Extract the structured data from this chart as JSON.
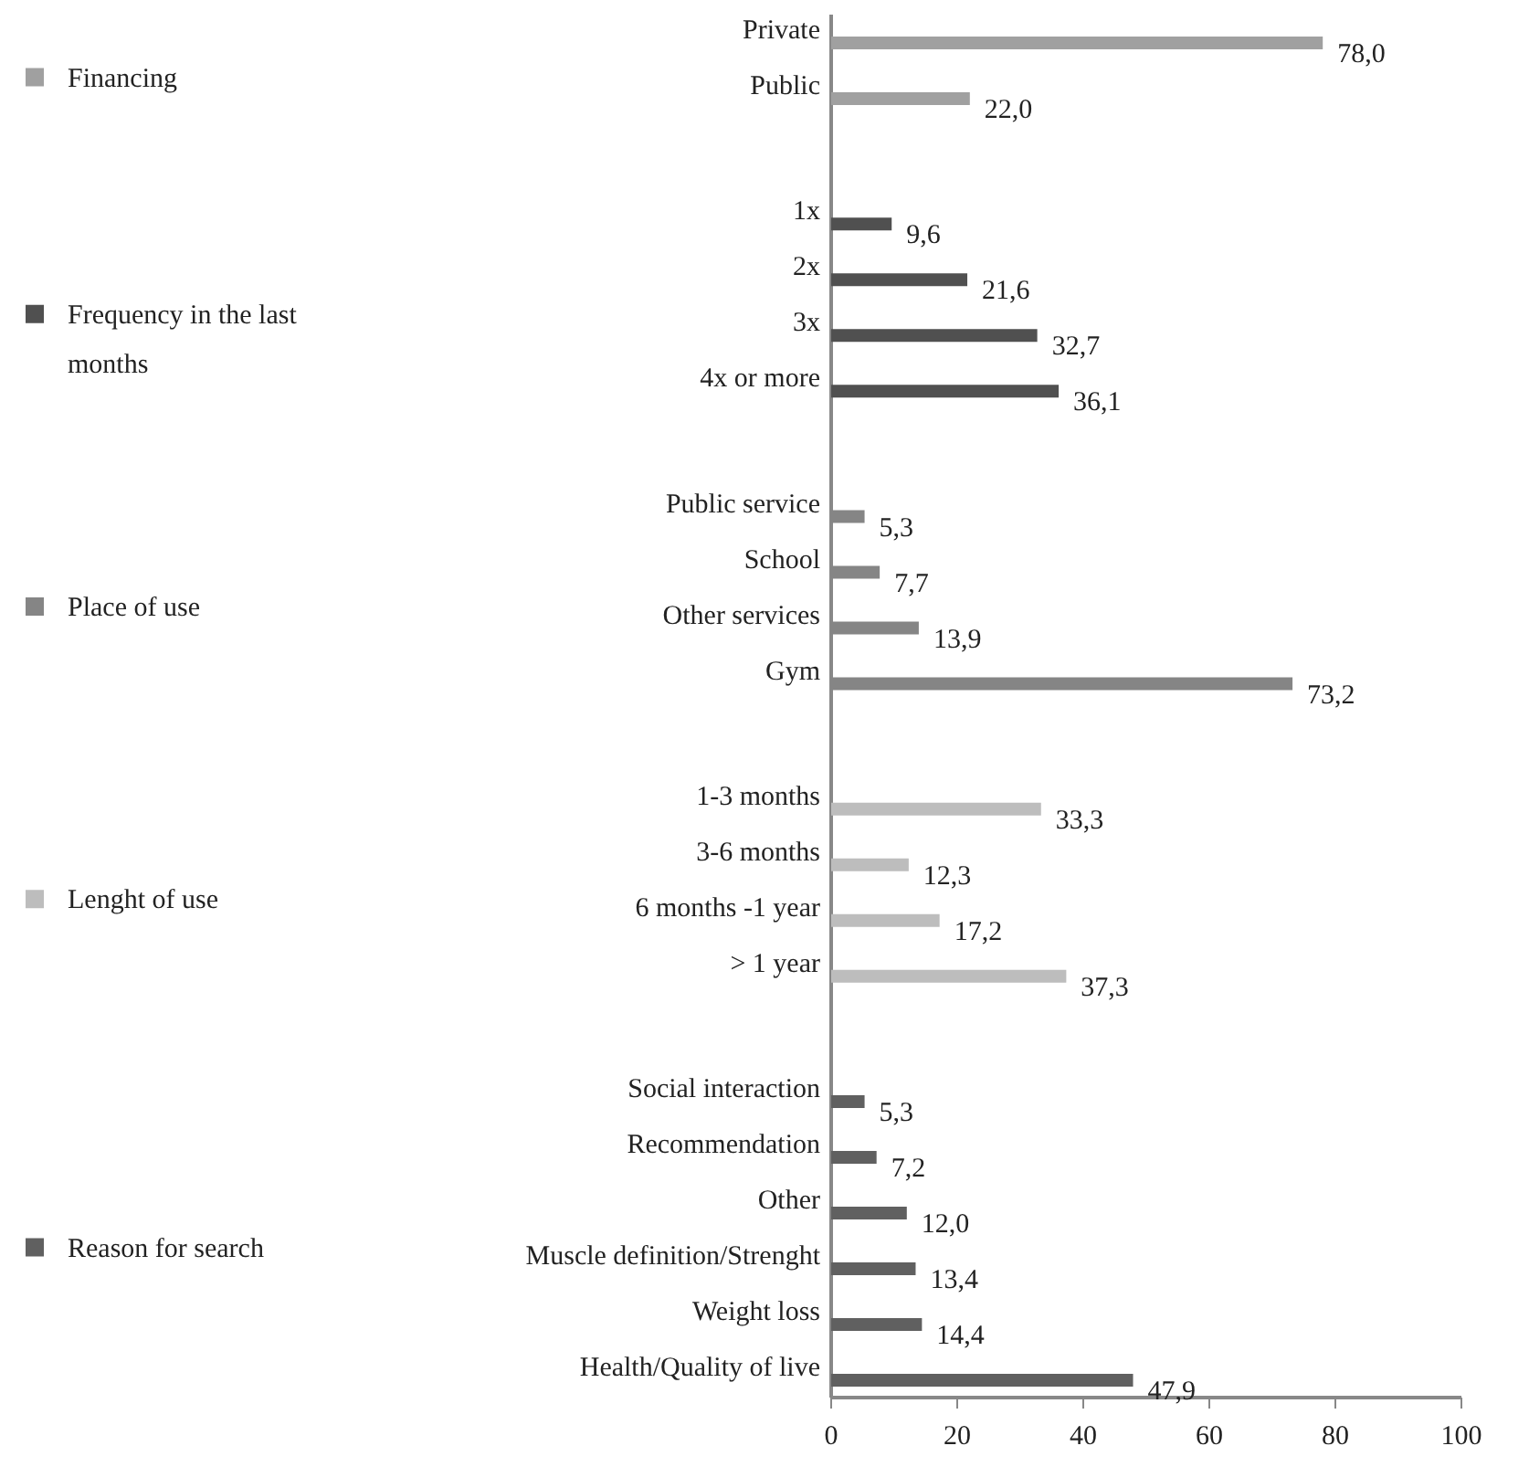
{
  "chart_data": {
    "type": "bar",
    "orientation": "horizontal",
    "categories": [
      "Private",
      "Public",
      "1x",
      "2x",
      "3x",
      "4x or more",
      "Public service",
      "School",
      "Other services",
      "Gym",
      "1-3 months",
      "3-6 months",
      "6 months -1 year",
      "> 1 year",
      "Social interaction",
      "Recommendation",
      "Other",
      "Muscle definition/Strenght",
      "Weight loss",
      "Health/Quality of live"
    ],
    "series": [
      {
        "name": "Financing",
        "color": "#a0a0a0",
        "values": [
          78.0,
          22.0,
          null,
          null,
          null,
          null,
          null,
          null,
          null,
          null,
          null,
          null,
          null,
          null,
          null,
          null,
          null,
          null,
          null,
          null
        ],
        "value_labels": [
          "78,0",
          "22,0",
          null,
          null,
          null,
          null,
          null,
          null,
          null,
          null,
          null,
          null,
          null,
          null,
          null,
          null,
          null,
          null,
          null,
          null
        ]
      },
      {
        "name": "Frequency in the last months",
        "color": "#505050",
        "values": [
          null,
          null,
          9.6,
          21.6,
          32.7,
          36.1,
          null,
          null,
          null,
          null,
          null,
          null,
          null,
          null,
          null,
          null,
          null,
          null,
          null,
          null
        ],
        "value_labels": [
          null,
          null,
          "9,6",
          "21,6",
          "32,7",
          "36,1",
          null,
          null,
          null,
          null,
          null,
          null,
          null,
          null,
          null,
          null,
          null,
          null,
          null,
          null
        ]
      },
      {
        "name": "Place of use",
        "color": "#858585",
        "values": [
          null,
          null,
          null,
          null,
          null,
          null,
          5.3,
          7.7,
          13.9,
          73.2,
          null,
          null,
          null,
          null,
          null,
          null,
          null,
          null,
          null,
          null
        ],
        "value_labels": [
          null,
          null,
          null,
          null,
          null,
          null,
          "5,3",
          "7,7",
          "13,9",
          "73,2",
          null,
          null,
          null,
          null,
          null,
          null,
          null,
          null,
          null,
          null
        ]
      },
      {
        "name": "Lenght of use",
        "color": "#bdbdbd",
        "values": [
          null,
          null,
          null,
          null,
          null,
          null,
          null,
          null,
          null,
          null,
          33.3,
          12.3,
          17.2,
          37.3,
          null,
          null,
          null,
          null,
          null,
          null
        ],
        "value_labels": [
          null,
          null,
          null,
          null,
          null,
          null,
          null,
          null,
          null,
          null,
          "33,3",
          "12,3",
          "17,2",
          "37,3",
          null,
          null,
          null,
          null,
          null,
          null
        ]
      },
      {
        "name": "Reason for search",
        "color": "#606060",
        "values": [
          null,
          null,
          null,
          null,
          null,
          null,
          null,
          null,
          null,
          null,
          null,
          null,
          null,
          null,
          5.3,
          7.2,
          12.0,
          13.4,
          14.4,
          47.9
        ],
        "value_labels": [
          null,
          null,
          null,
          null,
          null,
          null,
          null,
          null,
          null,
          null,
          null,
          null,
          null,
          null,
          "5,3",
          "7,2",
          "12,0",
          "13,4",
          "14,4",
          "47,9"
        ]
      }
    ],
    "xlim": [
      0,
      100
    ],
    "xticks": [
      0,
      20,
      40,
      60,
      80,
      100
    ],
    "legend": "left",
    "grid": false
  }
}
